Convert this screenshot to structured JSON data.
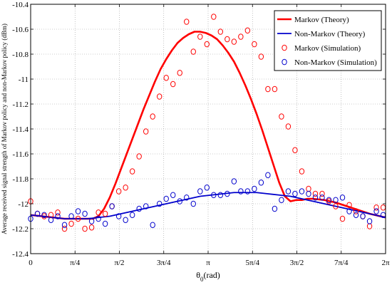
{
  "chart_data": {
    "type": "line",
    "title": "",
    "xlabel": "θ0(rad)",
    "ylabel": "Average received signal strength of Markov policy and non-Markov policy (dBm)",
    "xlim": [
      0,
      6.2832
    ],
    "ylim": [
      -12.4,
      -10.4
    ],
    "grid": true,
    "legend_position": "top-right",
    "x_ticks": [
      {
        "value": 0,
        "label": "0"
      },
      {
        "value": 0.7854,
        "label": "π/4"
      },
      {
        "value": 1.5708,
        "label": "π/2"
      },
      {
        "value": 2.3562,
        "label": "3π/4"
      },
      {
        "value": 3.1416,
        "label": "π"
      },
      {
        "value": 3.927,
        "label": "5π/4"
      },
      {
        "value": 4.7124,
        "label": "3π/2"
      },
      {
        "value": 5.4978,
        "label": "7π/4"
      },
      {
        "value": 6.2832,
        "label": "2π"
      }
    ],
    "y_ticks": [
      {
        "value": -10.4,
        "label": "-10.4"
      },
      {
        "value": -10.6,
        "label": "-10.6"
      },
      {
        "value": -10.8,
        "label": "-10.8"
      },
      {
        "value": -11,
        "label": "-11"
      },
      {
        "value": -11.2,
        "label": "-11.2"
      },
      {
        "value": -11.4,
        "label": "-11.4"
      },
      {
        "value": -11.6,
        "label": "-11.6"
      },
      {
        "value": -11.8,
        "label": "-11.8"
      },
      {
        "value": -12,
        "label": "-12"
      },
      {
        "value": -12.2,
        "label": "-12.2"
      },
      {
        "value": -12.4,
        "label": "-12.4"
      }
    ],
    "series": [
      {
        "name": "Markov (Theory)",
        "style": "line",
        "color": "#ff0000",
        "x": [
          0,
          0.2,
          0.4,
          0.6,
          0.8,
          1.0,
          1.1,
          1.2,
          1.3,
          1.4,
          1.5,
          1.6,
          1.7,
          1.8,
          1.9,
          2.0,
          2.1,
          2.2,
          2.3,
          2.4,
          2.5,
          2.6,
          2.7,
          2.8,
          2.9,
          3.0,
          3.1,
          3.2,
          3.3,
          3.4,
          3.5,
          3.6,
          3.7,
          3.8,
          3.9,
          4.0,
          4.1,
          4.2,
          4.3,
          4.4,
          4.5,
          4.6,
          4.7,
          4.8,
          4.9,
          5.0,
          5.2,
          5.4,
          5.6,
          5.8,
          6.0,
          6.2832
        ],
        "y": [
          -12.09,
          -12.1,
          -12.11,
          -12.12,
          -12.12,
          -12.12,
          -12.12,
          -12.1,
          -12.04,
          -11.95,
          -11.84,
          -11.72,
          -11.6,
          -11.48,
          -11.36,
          -11.24,
          -11.13,
          -11.02,
          -10.92,
          -10.84,
          -10.77,
          -10.71,
          -10.67,
          -10.64,
          -10.62,
          -10.62,
          -10.63,
          -10.65,
          -10.68,
          -10.73,
          -10.79,
          -10.86,
          -10.95,
          -11.05,
          -11.16,
          -11.28,
          -11.41,
          -11.55,
          -11.69,
          -11.83,
          -11.94,
          -11.98,
          -11.97,
          -11.97,
          -11.96,
          -11.96,
          -11.97,
          -11.99,
          -12.02,
          -12.05,
          -12.08,
          -12.11
        ]
      },
      {
        "name": "Non-Markov (Theory)",
        "style": "line",
        "color": "#0000cc",
        "x": [
          0,
          0.2,
          0.4,
          0.6,
          0.8,
          1.0,
          1.2,
          1.4,
          1.6,
          1.8,
          2.0,
          2.2,
          2.4,
          2.6,
          2.8,
          3.0,
          3.2,
          3.4,
          3.6,
          3.8,
          4.0,
          4.2,
          4.4,
          4.6,
          4.8,
          5.0,
          5.2,
          5.4,
          5.6,
          5.8,
          6.0,
          6.2832
        ],
        "y": [
          -12.09,
          -12.1,
          -12.11,
          -12.12,
          -12.12,
          -12.12,
          -12.11,
          -12.1,
          -12.08,
          -12.06,
          -12.04,
          -12.02,
          -12.0,
          -11.98,
          -11.96,
          -11.94,
          -11.93,
          -11.92,
          -11.91,
          -11.91,
          -11.91,
          -11.92,
          -11.93,
          -11.94,
          -11.96,
          -11.98,
          -12.0,
          -12.02,
          -12.04,
          -12.06,
          -12.08,
          -12.11
        ]
      },
      {
        "name": "Markov (Simulation)",
        "style": "markers",
        "color": "#ff0000",
        "x": [
          0.0,
          0.12,
          0.24,
          0.36,
          0.48,
          0.6,
          0.72,
          0.84,
          0.96,
          1.08,
          1.2,
          1.32,
          1.44,
          1.56,
          1.68,
          1.8,
          1.92,
          2.04,
          2.16,
          2.28,
          2.4,
          2.52,
          2.64,
          2.76,
          2.88,
          3.0,
          3.12,
          3.24,
          3.36,
          3.48,
          3.6,
          3.72,
          3.84,
          3.96,
          4.08,
          4.2,
          4.32,
          4.44,
          4.56,
          4.68,
          4.8,
          4.92,
          5.04,
          5.16,
          5.28,
          5.4,
          5.52,
          5.64,
          5.76,
          5.88,
          6.0,
          6.12,
          6.24
        ],
        "y": [
          -11.98,
          -12.08,
          -12.1,
          -12.09,
          -12.07,
          -12.2,
          -12.16,
          -12.12,
          -12.2,
          -12.19,
          -12.07,
          -12.08,
          -12.02,
          -11.9,
          -11.87,
          -11.74,
          -11.62,
          -11.42,
          -11.3,
          -11.14,
          -10.99,
          -11.04,
          -10.95,
          -10.54,
          -10.78,
          -10.66,
          -10.72,
          -10.5,
          -10.62,
          -10.68,
          -10.7,
          -10.66,
          -10.61,
          -10.72,
          -10.82,
          -11.08,
          -11.08,
          -11.3,
          -11.38,
          -11.57,
          -11.74,
          -11.88,
          -11.92,
          -11.92,
          -11.98,
          -12.02,
          -12.12,
          -12.01,
          -12.06,
          -12.1,
          -12.18,
          -12.03,
          -12.03
        ]
      },
      {
        "name": "Non-Markov (Simulation)",
        "style": "markers",
        "color": "#0000cc",
        "x": [
          0.0,
          0.12,
          0.24,
          0.36,
          0.48,
          0.6,
          0.72,
          0.84,
          0.96,
          1.08,
          1.2,
          1.32,
          1.44,
          1.56,
          1.68,
          1.8,
          1.92,
          2.04,
          2.16,
          2.28,
          2.4,
          2.52,
          2.64,
          2.76,
          2.88,
          3.0,
          3.12,
          3.24,
          3.36,
          3.48,
          3.6,
          3.72,
          3.84,
          3.96,
          4.08,
          4.2,
          4.32,
          4.44,
          4.56,
          4.68,
          4.8,
          4.92,
          5.04,
          5.16,
          5.28,
          5.4,
          5.52,
          5.64,
          5.76,
          5.88,
          6.0,
          6.12,
          6.24
        ],
        "y": [
          -12.12,
          -12.08,
          -12.09,
          -12.13,
          -12.1,
          -12.17,
          -12.1,
          -12.06,
          -12.08,
          -12.14,
          -12.12,
          -12.16,
          -12.02,
          -12.1,
          -12.13,
          -12.09,
          -12.04,
          -12.02,
          -12.17,
          -12.0,
          -11.96,
          -11.93,
          -11.98,
          -11.95,
          -12.0,
          -11.9,
          -11.87,
          -11.93,
          -11.93,
          -11.92,
          -11.82,
          -11.9,
          -11.9,
          -11.88,
          -11.83,
          -11.77,
          -12.04,
          -11.97,
          -11.9,
          -11.92,
          -11.9,
          -11.92,
          -11.95,
          -11.95,
          -11.97,
          -11.97,
          -11.95,
          -12.06,
          -12.09,
          -12.1,
          -12.14,
          -12.06,
          -12.09
        ]
      }
    ]
  }
}
